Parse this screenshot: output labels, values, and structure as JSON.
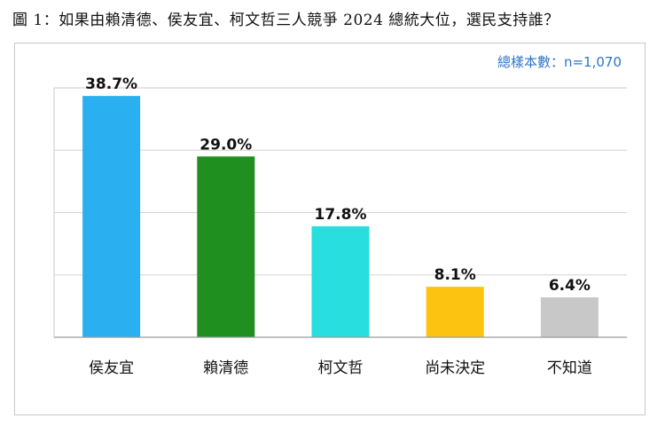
{
  "title": "圖 1：如果由賴清德、侯友宜、柯文哲三人競爭 2024 總統大位，選民支持誰？",
  "sample_size_label": "總樣本數：n=1,070",
  "chart_data": {
    "type": "bar",
    "categories": [
      "侯友宜",
      "賴清德",
      "柯文哲",
      "尚未決定",
      "不知道"
    ],
    "values": [
      38.7,
      29.0,
      17.8,
      8.1,
      6.4
    ],
    "value_labels": [
      "38.7%",
      "29.0%",
      "17.8%",
      "8.1%",
      "6.4%"
    ],
    "colors": [
      "#2ab0f0",
      "#1f8f1f",
      "#28dede",
      "#fcc410",
      "#c8c8c8"
    ],
    "title": "",
    "xlabel": "",
    "ylabel": "",
    "ylim": [
      0,
      40
    ],
    "grid": true
  }
}
